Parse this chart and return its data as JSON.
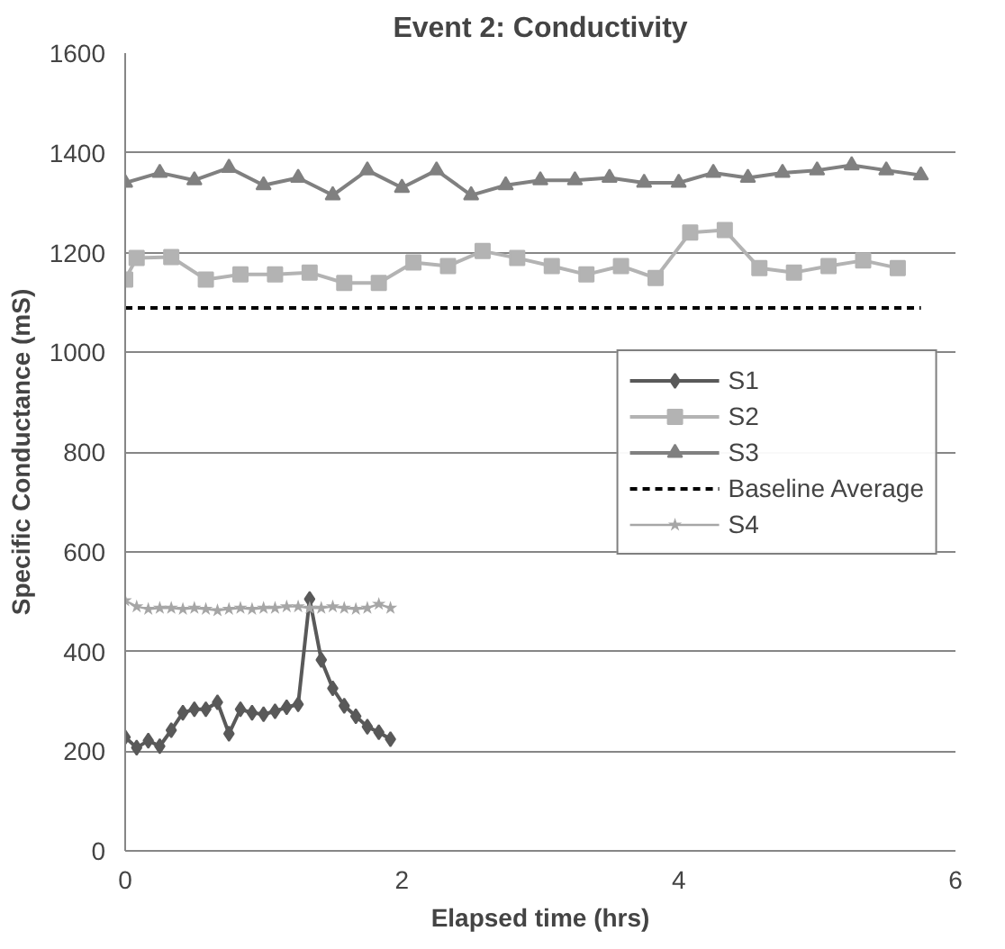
{
  "chart_data": {
    "type": "line",
    "title": "Event 2: Conductivity",
    "xlabel": "Elapsed time (hrs)",
    "ylabel": "Specific Conductance (mS)",
    "xlim": [
      0,
      6
    ],
    "xticks": [
      0,
      2,
      4,
      6
    ],
    "ylim": [
      0,
      1600
    ],
    "yticks": [
      0,
      200,
      400,
      600,
      800,
      1000,
      1200,
      1400,
      1600
    ],
    "grid": "y",
    "legend": "right",
    "series": [
      {
        "name": "S1",
        "color": "#595959",
        "marker": "diamond",
        "x": [
          0,
          0.083,
          0.167,
          0.25,
          0.333,
          0.417,
          0.5,
          0.583,
          0.667,
          0.75,
          0.833,
          0.917,
          1,
          1.083,
          1.167,
          1.25,
          1.333,
          1.417,
          1.5,
          1.583,
          1.667,
          1.75,
          1.833,
          1.917
        ],
        "values": [
          228,
          207,
          221,
          210,
          242,
          277,
          284,
          284,
          298,
          235,
          284,
          277,
          274,
          280,
          288,
          294,
          505,
          383,
          326,
          291,
          270,
          249,
          238,
          224
        ]
      },
      {
        "name": "S2",
        "color": "#b3b3b3",
        "marker": "square",
        "x": [
          0,
          0.083,
          0.333,
          0.583,
          0.833,
          1.083,
          1.333,
          1.583,
          1.833,
          2.083,
          2.333,
          2.583,
          2.833,
          3.083,
          3.333,
          3.583,
          3.833,
          4.083,
          4.333,
          4.583,
          4.833,
          5.083,
          5.333,
          5.583
        ],
        "values": [
          1146,
          1189,
          1191,
          1146,
          1156,
          1156,
          1160,
          1139,
          1139,
          1180,
          1173,
          1203,
          1189,
          1173,
          1156,
          1173,
          1149,
          1240,
          1245,
          1169,
          1160,
          1173,
          1184,
          1169
        ]
      },
      {
        "name": "S3",
        "color": "#808080",
        "marker": "triangle",
        "x": [
          0,
          0.25,
          0.5,
          0.75,
          1,
          1.25,
          1.5,
          1.75,
          2,
          2.25,
          2.5,
          2.75,
          3,
          3.25,
          3.5,
          3.75,
          4,
          4.25,
          4.5,
          4.75,
          5,
          5.25,
          5.5,
          5.75
        ],
        "values": [
          1340,
          1360,
          1345,
          1370,
          1335,
          1350,
          1315,
          1365,
          1330,
          1365,
          1315,
          1335,
          1345,
          1345,
          1350,
          1340,
          1340,
          1360,
          1350,
          1360,
          1365,
          1375,
          1365,
          1355
        ]
      },
      {
        "name": "Baseline Average",
        "color": "#000000",
        "marker": "none",
        "line_style": "dashed",
        "x": [
          0,
          5.75
        ],
        "values": [
          1089,
          1089
        ]
      },
      {
        "name": "S4",
        "color": "#a6a6a6",
        "marker": "star",
        "x": [
          0,
          0.083,
          0.167,
          0.25,
          0.333,
          0.417,
          0.5,
          0.583,
          0.667,
          0.75,
          0.833,
          0.917,
          1,
          1.083,
          1.167,
          1.25,
          1.333,
          1.417,
          1.5,
          1.583,
          1.667,
          1.75,
          1.833,
          1.917
        ],
        "values": [
          502,
          490,
          485,
          487,
          487,
          485,
          487,
          485,
          482,
          485,
          487,
          485,
          487,
          487,
          490,
          490,
          487,
          487,
          490,
          487,
          485,
          487,
          495,
          487
        ]
      }
    ]
  }
}
